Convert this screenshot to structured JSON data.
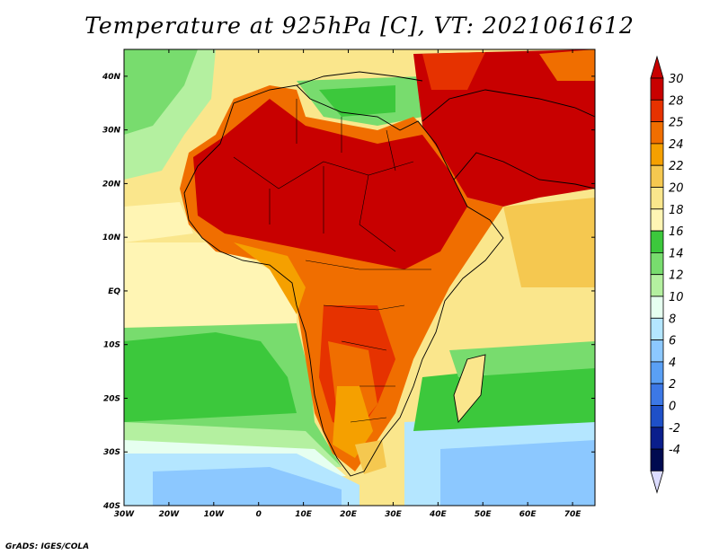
{
  "title": "Temperature at 925hPa [C], VT: 2021061612",
  "credit": "GrADS: IGES/COLA",
  "map": {
    "region": "Africa",
    "lon_range": [
      -30,
      75
    ],
    "lat_range": [
      -40,
      45
    ],
    "lon_ticks": [
      "30W",
      "20W",
      "10W",
      "0",
      "10E",
      "20E",
      "30E",
      "40E",
      "50E",
      "60E",
      "70E"
    ],
    "lat_ticks": [
      "40N",
      "30N",
      "20N",
      "10N",
      "EQ",
      "10S",
      "20S",
      "30S",
      "40S"
    ]
  },
  "colorbar": {
    "labels": [
      "30",
      "28",
      "25",
      "24",
      "22",
      "20",
      "18",
      "16",
      "14",
      "12",
      "10",
      "8",
      "6",
      "4",
      "2",
      "0",
      "-2",
      "-4"
    ],
    "colors": [
      "#c80000",
      "#e63200",
      "#f06e00",
      "#f5a000",
      "#f5c850",
      "#fae68c",
      "#fff5b4",
      "#3cc83c",
      "#78dc6e",
      "#b4f0a0",
      "#e6fff0",
      "#b4e6ff",
      "#8cc8ff",
      "#5aa0f5",
      "#3c78e6",
      "#1e50c8",
      "#0a1e8c",
      "#000a50"
    ],
    "over_color": "#c80000",
    "under_color": "#dcdcff"
  }
}
